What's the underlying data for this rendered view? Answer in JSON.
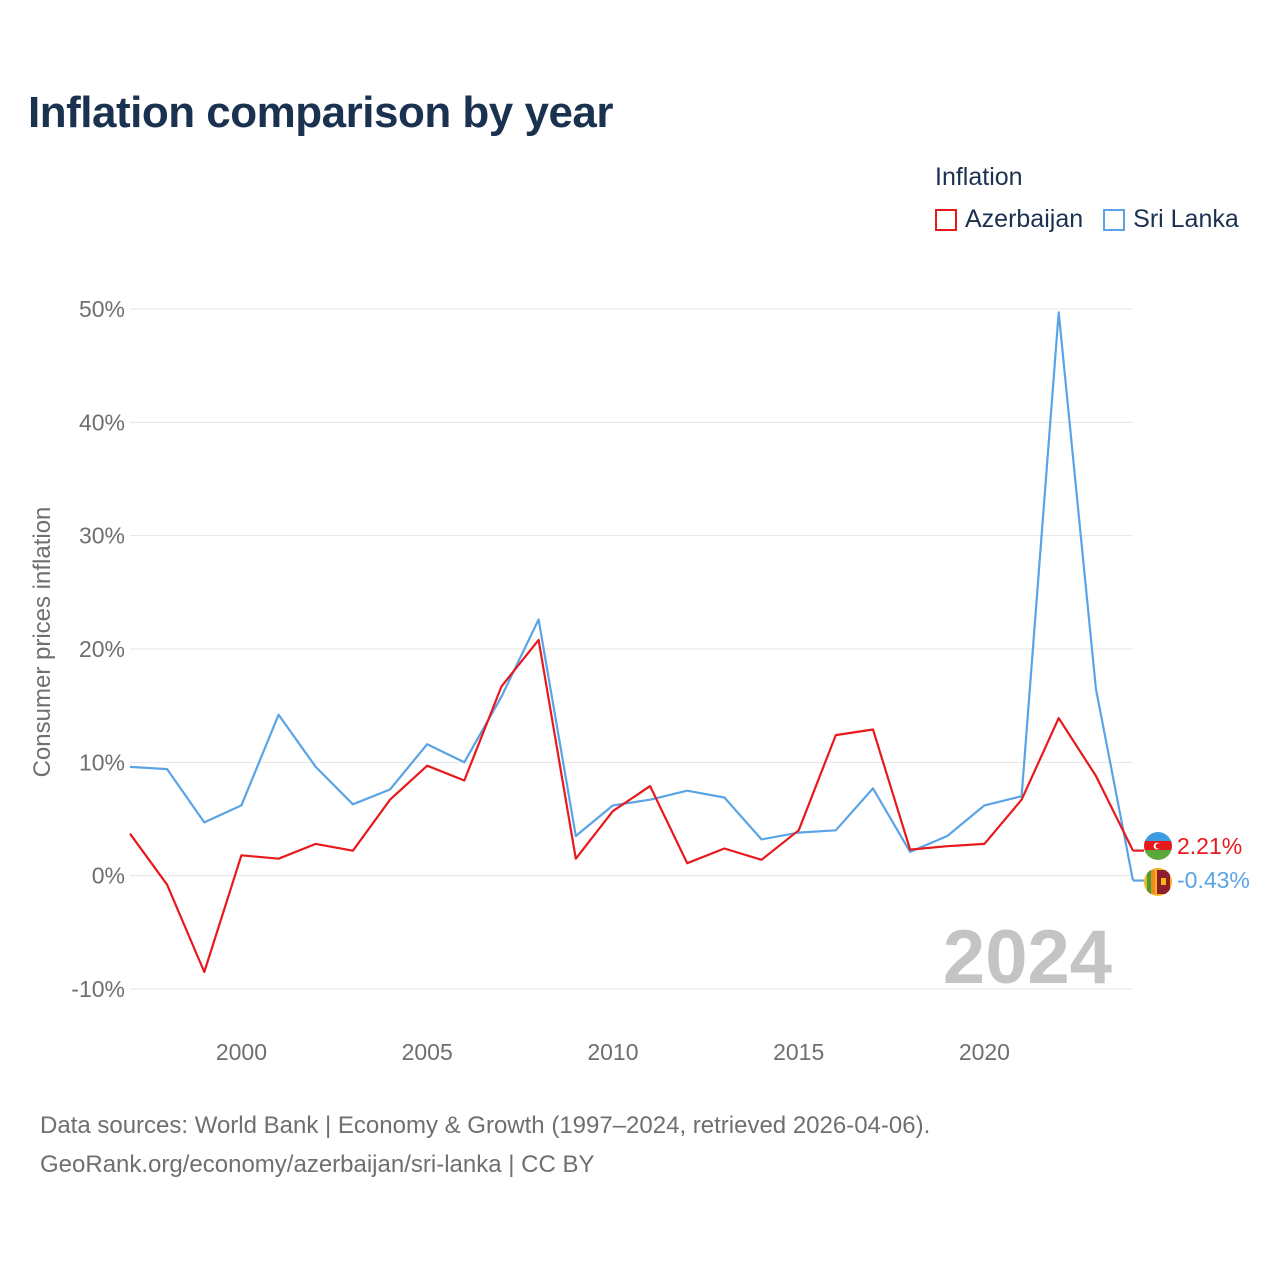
{
  "title": "Inflation comparison by year",
  "legend": {
    "title": "Inflation",
    "items": [
      {
        "label": "Azerbaijan",
        "color": "#e8191d"
      },
      {
        "label": "Sri Lanka",
        "color": "#5aa4e6"
      }
    ]
  },
  "colors": {
    "azerbaijan": "#e8191d",
    "sri_lanka": "#5aa4e6",
    "grid": "#e4e4e4",
    "axis_text": "#6f6f6f"
  },
  "source": {
    "line1": "Data sources: World Bank | Economy & Growth (1997–2024, retrieved 2026-04-06).",
    "line2": "GeoRank.org/economy/azerbaijan/sri-lanka | CC BY"
  },
  "chart_data": {
    "type": "line",
    "title": "Inflation comparison by year",
    "xlabel": "",
    "ylabel": "Consumer prices inflation",
    "xlim": [
      1997,
      2024
    ],
    "ylim": [
      -10,
      50
    ],
    "yticks": [
      -10,
      0,
      10,
      20,
      30,
      40,
      50
    ],
    "ytick_labels": [
      "-10%",
      "0%",
      "10%",
      "20%",
      "30%",
      "40%",
      "50%"
    ],
    "xticks": [
      2000,
      2005,
      2010,
      2015,
      2020
    ],
    "xtick_labels": [
      "2000",
      "2005",
      "2010",
      "2015",
      "2020"
    ],
    "year_watermark": "2024",
    "x": [
      1997,
      1998,
      1999,
      2000,
      2001,
      2002,
      2003,
      2004,
      2005,
      2006,
      2007,
      2008,
      2009,
      2010,
      2011,
      2012,
      2013,
      2014,
      2015,
      2016,
      2017,
      2018,
      2019,
      2020,
      2021,
      2022,
      2023,
      2024
    ],
    "series": [
      {
        "name": "Azerbaijan",
        "end_label": "2.21%",
        "flag": "azerbaijan-flag-icon",
        "values": [
          3.7,
          -0.8,
          -8.5,
          1.8,
          1.5,
          2.8,
          2.2,
          6.7,
          9.7,
          8.4,
          16.7,
          20.8,
          1.5,
          5.7,
          7.9,
          1.1,
          2.4,
          1.4,
          4.0,
          12.4,
          12.9,
          2.3,
          2.6,
          2.8,
          6.7,
          13.9,
          8.8,
          2.21
        ]
      },
      {
        "name": "Sri Lanka",
        "end_label": "-0.43%",
        "flag": "sri-lanka-flag-icon",
        "values": [
          9.6,
          9.4,
          4.7,
          6.2,
          14.2,
          9.6,
          6.3,
          7.6,
          11.6,
          10.0,
          15.8,
          22.6,
          3.5,
          6.2,
          6.7,
          7.5,
          6.9,
          3.2,
          3.8,
          4.0,
          7.7,
          2.1,
          3.5,
          6.2,
          7.0,
          49.7,
          16.5,
          -0.43
        ]
      }
    ]
  }
}
